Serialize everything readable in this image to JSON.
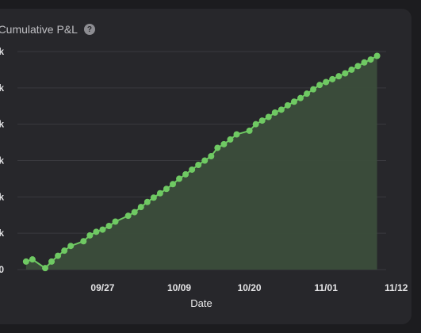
{
  "header": {
    "title": "et Cumulative P&L",
    "help_icon": "question-circle-icon"
  },
  "colors": {
    "background": "#1c1c1f",
    "card": "#27272b",
    "line": "#6fc963",
    "area": "#3b4d3b",
    "grid": "#3a3a3f"
  },
  "chart_data": {
    "type": "area",
    "xlabel": "Date",
    "ylabel": "",
    "y_tick_labels": [
      "0",
      "k",
      "k",
      "k",
      "k",
      "k",
      "k"
    ],
    "ylim": [
      0,
      6
    ],
    "y_ticks": [
      0,
      1,
      2,
      3,
      4,
      5,
      6
    ],
    "xlim": [
      0,
      52
    ],
    "x_tick_values": [
      9,
      21,
      32,
      44
    ],
    "x_tick_labels": [
      "09/27",
      "10/09",
      "10/20",
      "11/01",
      "11/12"
    ],
    "x_tick_positions": [
      9,
      21,
      32,
      44,
      55
    ],
    "grid": true,
    "series": [
      {
        "x": [
          -3,
          -2,
          0,
          1,
          2,
          3,
          4,
          6,
          7,
          8,
          9,
          10,
          11,
          13,
          14,
          15,
          16,
          17,
          18,
          19,
          20,
          21,
          22,
          23,
          24,
          25,
          26,
          27,
          28,
          29,
          30,
          32,
          33,
          34,
          35,
          36,
          37,
          38,
          39,
          40,
          41,
          42,
          43,
          44,
          45,
          46,
          47,
          48,
          49,
          50,
          51,
          52
        ],
        "values": [
          0.22,
          0.28,
          0.04,
          0.22,
          0.38,
          0.52,
          0.65,
          0.78,
          0.94,
          1.04,
          1.1,
          1.2,
          1.32,
          1.48,
          1.58,
          1.72,
          1.86,
          1.98,
          2.1,
          2.22,
          2.35,
          2.5,
          2.62,
          2.75,
          2.88,
          3.0,
          3.12,
          3.35,
          3.45,
          3.58,
          3.72,
          3.82,
          4.0,
          4.1,
          4.2,
          4.32,
          4.4,
          4.52,
          4.62,
          4.72,
          4.84,
          4.96,
          5.08,
          5.16,
          5.24,
          5.32,
          5.4,
          5.5,
          5.6,
          5.7,
          5.78,
          5.88
        ]
      }
    ]
  }
}
